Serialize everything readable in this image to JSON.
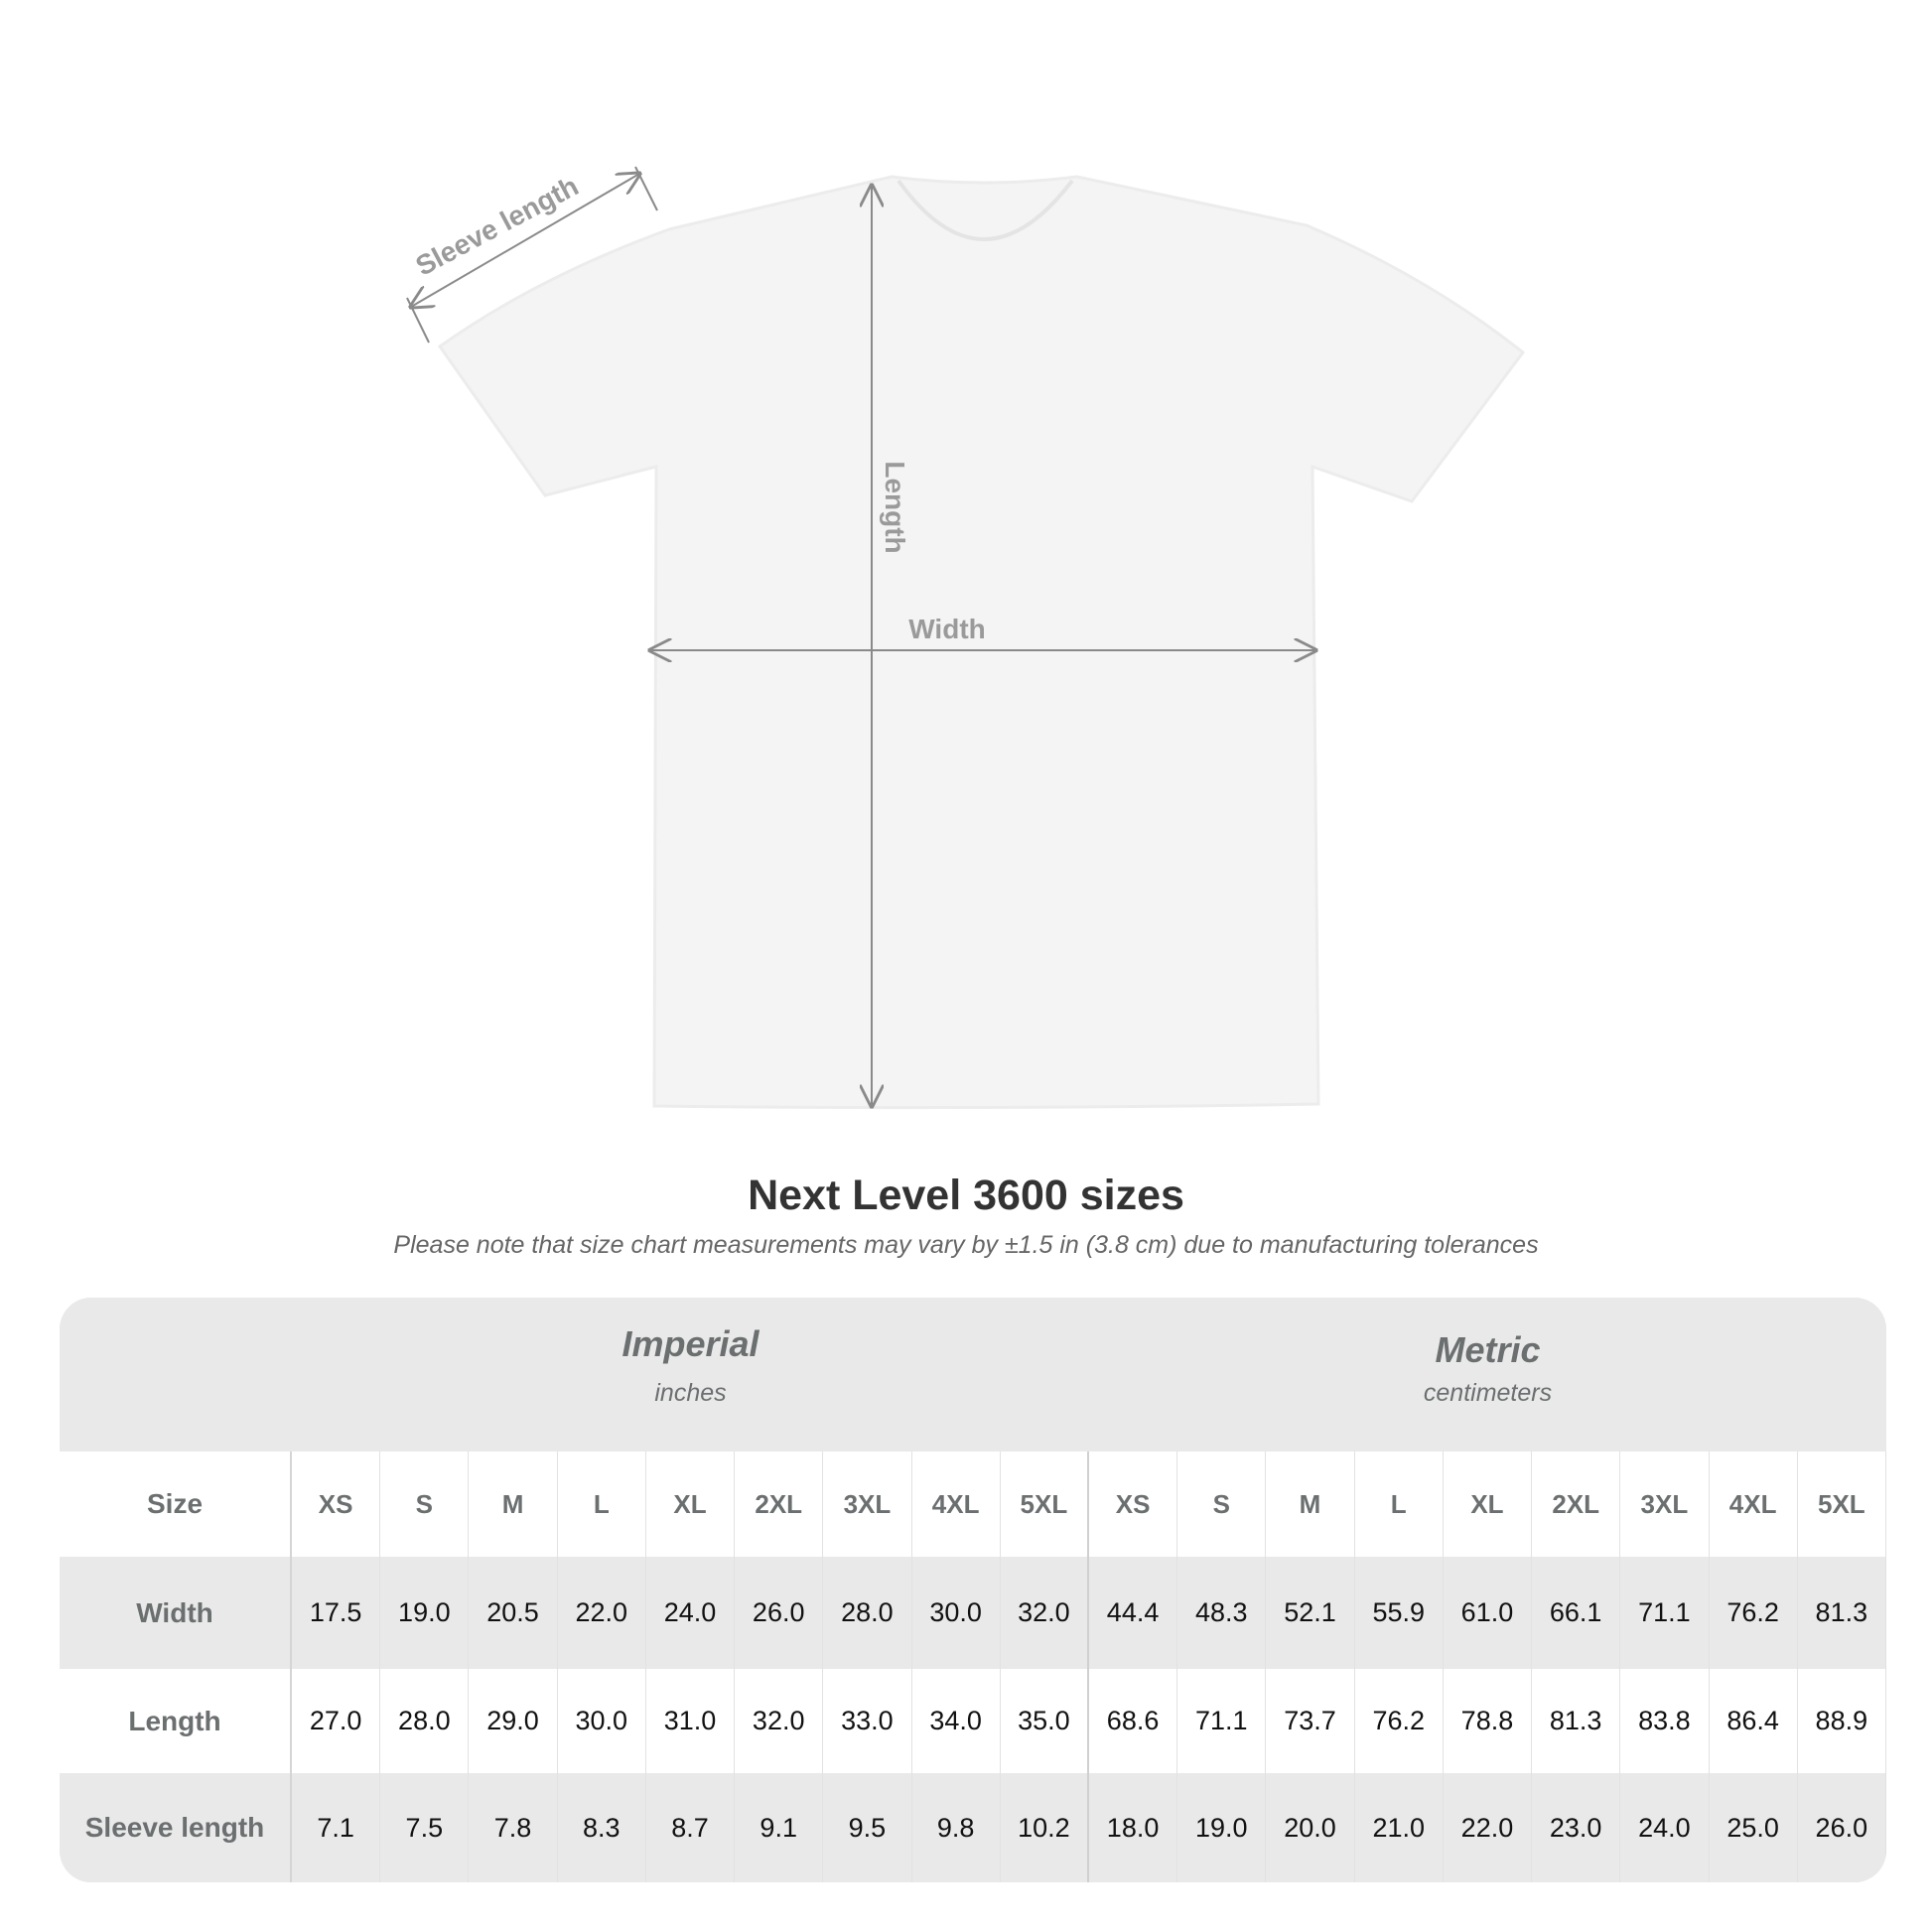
{
  "diagram": {
    "labels": {
      "sleeve": "Sleeve length",
      "length": "Length",
      "width": "Width"
    },
    "colors": {
      "shirt": "#f4f4f4",
      "measure_lines": "#8a8a8a",
      "label_text": "#9a9a9a"
    }
  },
  "title": "Next Level 3600 sizes",
  "subtitle": "Please note that size chart measurements may vary by ±1.5 in (3.8 cm) due to manufacturing tolerances",
  "table": {
    "groups": [
      {
        "name": "Imperial",
        "unit": "inches"
      },
      {
        "name": "Metric",
        "unit": "centimeters"
      }
    ],
    "size_label": "Size",
    "sizes": [
      "XS",
      "S",
      "M",
      "L",
      "XL",
      "2XL",
      "3XL",
      "4XL",
      "5XL",
      "XS",
      "S",
      "M",
      "L",
      "XL",
      "2XL",
      "3XL",
      "4XL",
      "5XL"
    ],
    "rows": [
      {
        "label": "Width",
        "values": [
          "17.5",
          "19.0",
          "20.5",
          "22.0",
          "24.0",
          "26.0",
          "28.0",
          "30.0",
          "32.0",
          "44.4",
          "48.3",
          "52.1",
          "55.9",
          "61.0",
          "66.1",
          "71.1",
          "76.2",
          "81.3"
        ]
      },
      {
        "label": "Length",
        "values": [
          "27.0",
          "28.0",
          "29.0",
          "30.0",
          "31.0",
          "32.0",
          "33.0",
          "34.0",
          "35.0",
          "68.6",
          "71.1",
          "73.7",
          "76.2",
          "78.8",
          "81.3",
          "83.8",
          "86.4",
          "88.9"
        ]
      },
      {
        "label": "Sleeve length",
        "values": [
          "7.1",
          "7.5",
          "7.8",
          "8.3",
          "8.7",
          "9.1",
          "9.5",
          "9.8",
          "10.2",
          "18.0",
          "19.0",
          "20.0",
          "21.0",
          "22.0",
          "23.0",
          "24.0",
          "25.0",
          "26.0"
        ]
      }
    ]
  }
}
